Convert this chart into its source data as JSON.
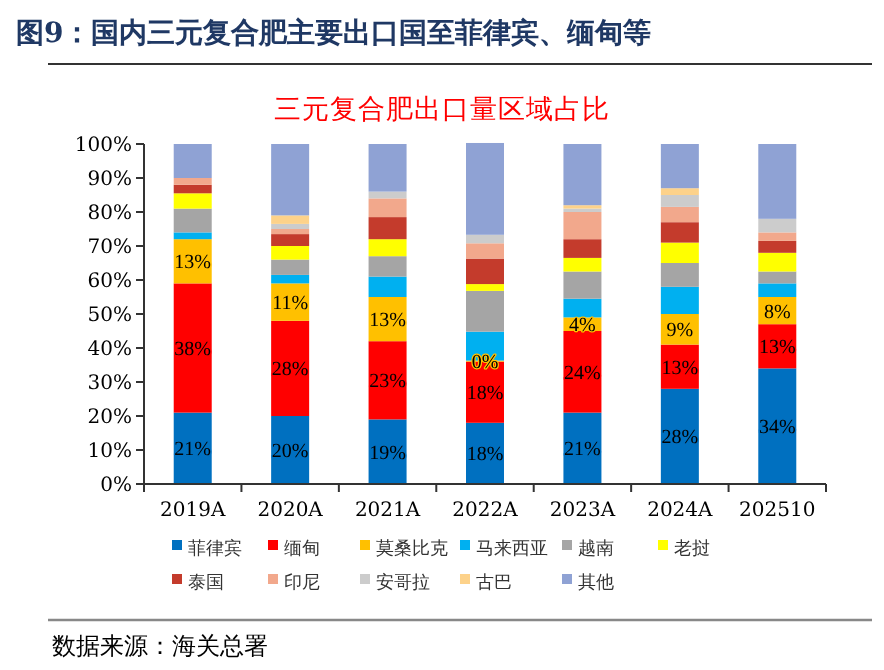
{
  "chart_data": {
    "type": "bar",
    "stacked": true,
    "title": "图9：国内三元复合肥主要出口国至菲律宾、缅甸等",
    "subtitle": "三元复合肥出口量区域占比",
    "categories": [
      "2019A",
      "2020A",
      "2021A",
      "2022A",
      "2023A",
      "2024A",
      "202510"
    ],
    "series": [
      {
        "name": "菲律宾",
        "color": "#0070c0",
        "values": [
          21,
          20,
          19,
          18,
          21,
          28,
          34
        ],
        "value_labels": [
          "21%",
          "20%",
          "19%",
          "18%",
          "21%",
          "28%",
          "34%"
        ]
      },
      {
        "name": "缅甸",
        "color": "#ff0000",
        "values": [
          38,
          28,
          23,
          18,
          24,
          13,
          13
        ],
        "value_labels": [
          "38%",
          "28%",
          "23%",
          "18%",
          "24%",
          "13%",
          "13%"
        ]
      },
      {
        "name": "莫桑比克",
        "color": "#ffc000",
        "values": [
          13,
          11,
          13,
          0.3,
          4,
          9,
          8
        ],
        "value_labels": [
          "13%",
          "11%",
          "13%",
          "0%",
          "4%",
          "9%",
          "8%"
        ]
      },
      {
        "name": "马来西亚",
        "color": "#00b0f0",
        "values": [
          2,
          2.5,
          6,
          8.5,
          5.5,
          8,
          4
        ]
      },
      {
        "name": "越南",
        "color": "#a5a5a5",
        "values": [
          7,
          4.5,
          6,
          12,
          8,
          7,
          3.5
        ]
      },
      {
        "name": "老挝",
        "color": "#ffff00",
        "values": [
          4.5,
          4,
          5,
          2,
          4,
          6,
          5.5
        ]
      },
      {
        "name": "泰国",
        "color": "#c43b2c",
        "values": [
          2.5,
          3.5,
          6.5,
          7.5,
          5.5,
          6,
          3.5
        ]
      },
      {
        "name": "印尼",
        "color": "#f2a88c",
        "values": [
          2,
          1.5,
          5.5,
          4.5,
          8,
          4.5,
          2.5
        ]
      },
      {
        "name": "安哥拉",
        "color": "#cccccc",
        "values": [
          null,
          1.5,
          2,
          2.5,
          1,
          3.5,
          4
        ]
      },
      {
        "name": "古巴",
        "color": "#fdd28a",
        "values": [
          0,
          2.5,
          0,
          0,
          1,
          2,
          0
        ]
      },
      {
        "name": "其他",
        "color": "#8fa2d4",
        "values": [
          10,
          21,
          14,
          27,
          18,
          13,
          22
        ]
      }
    ],
    "ylim": [
      0,
      100
    ],
    "yticks": [
      {
        "value": 0,
        "label": "0%"
      },
      {
        "value": 10,
        "label": "10%"
      },
      {
        "value": 20,
        "label": "20%"
      },
      {
        "value": 30,
        "label": "30%"
      },
      {
        "value": 40,
        "label": "40%"
      },
      {
        "value": 50,
        "label": "50%"
      },
      {
        "value": 60,
        "label": "60%"
      },
      {
        "value": 70,
        "label": "70%"
      },
      {
        "value": 80,
        "label": "80%"
      },
      {
        "value": 90,
        "label": "90%"
      },
      {
        "value": 100,
        "label": "100%"
      }
    ],
    "legend": "bottom",
    "grid": false,
    "annotations": [
      "数据来源：海关总署"
    ]
  }
}
